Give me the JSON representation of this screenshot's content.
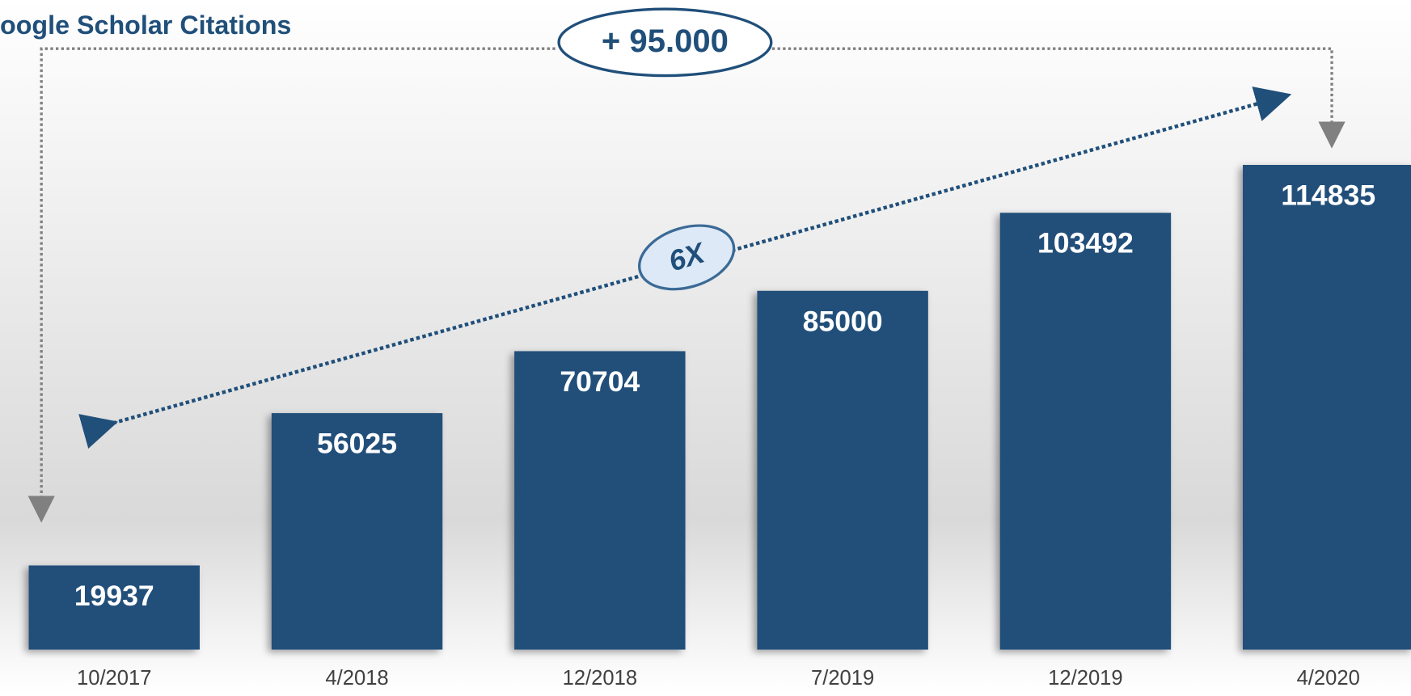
{
  "chart_data": {
    "type": "bar",
    "title": "oogle Scholar Citations",
    "categories": [
      "10/2017",
      "4/2018",
      "12/2018",
      "7/2019",
      "12/2019",
      "4/2020"
    ],
    "values": [
      19937,
      56025,
      70704,
      85000,
      103492,
      114835
    ],
    "color": "#204f7a",
    "ylim": [
      0,
      120000
    ],
    "annotations": [
      "+ 95.000",
      "6X"
    ]
  }
}
